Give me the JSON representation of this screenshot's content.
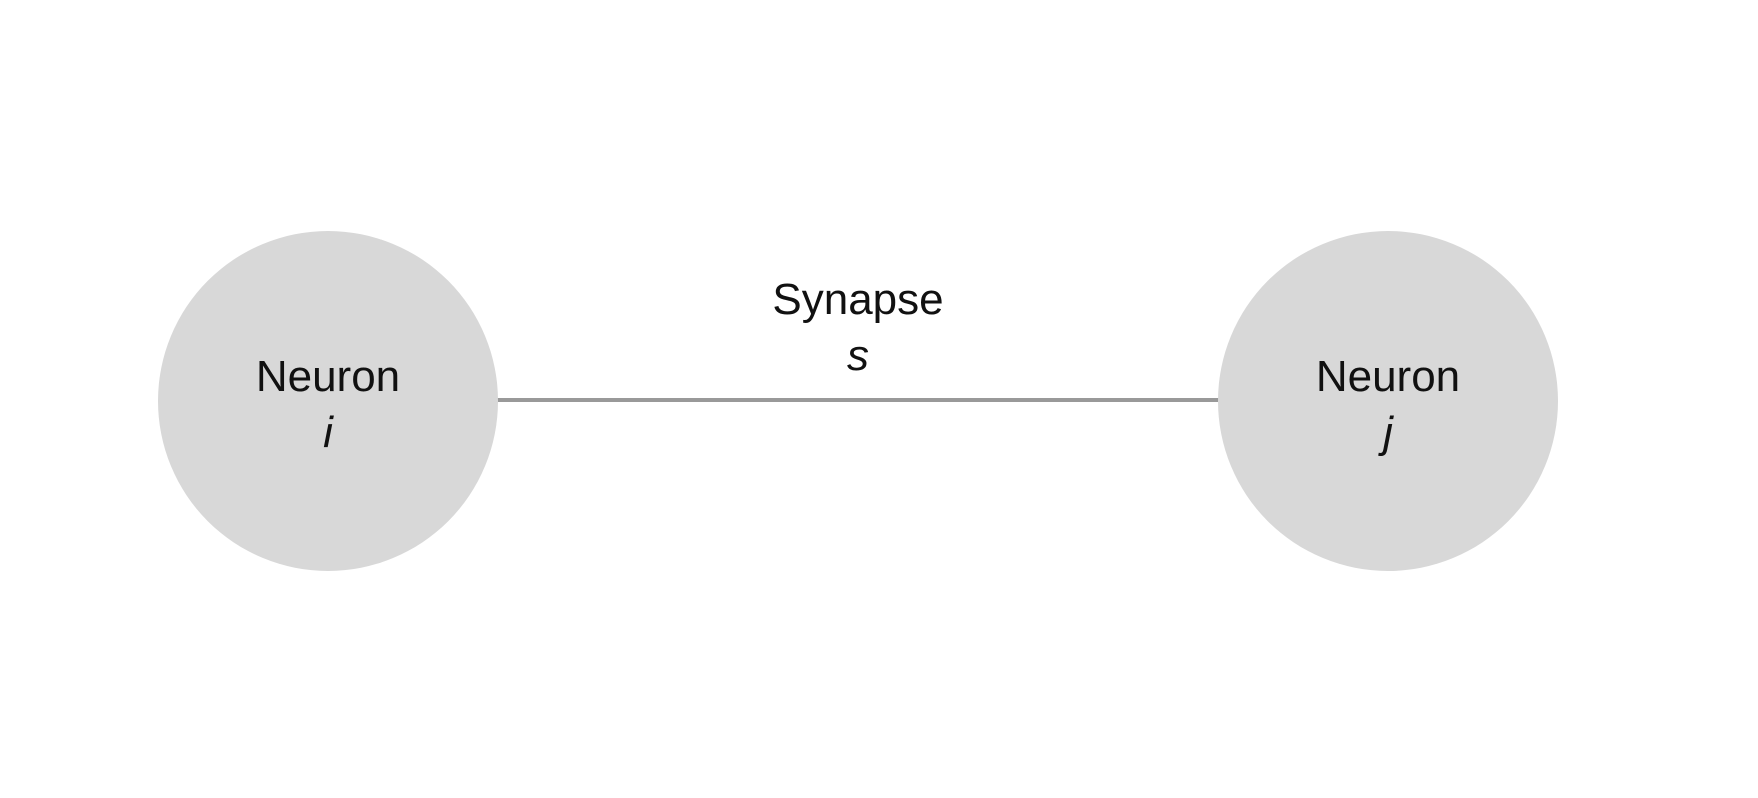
{
  "diagram": {
    "nodes": [
      {
        "label": "Neuron",
        "index": "i"
      },
      {
        "label": "Neuron",
        "index": "j"
      }
    ],
    "edge": {
      "label": "Synapse",
      "index": "s"
    },
    "colors": {
      "node_fill": "#d8d8d8",
      "edge_stroke": "#999999",
      "text": "#111111",
      "background": "#ffffff"
    }
  }
}
